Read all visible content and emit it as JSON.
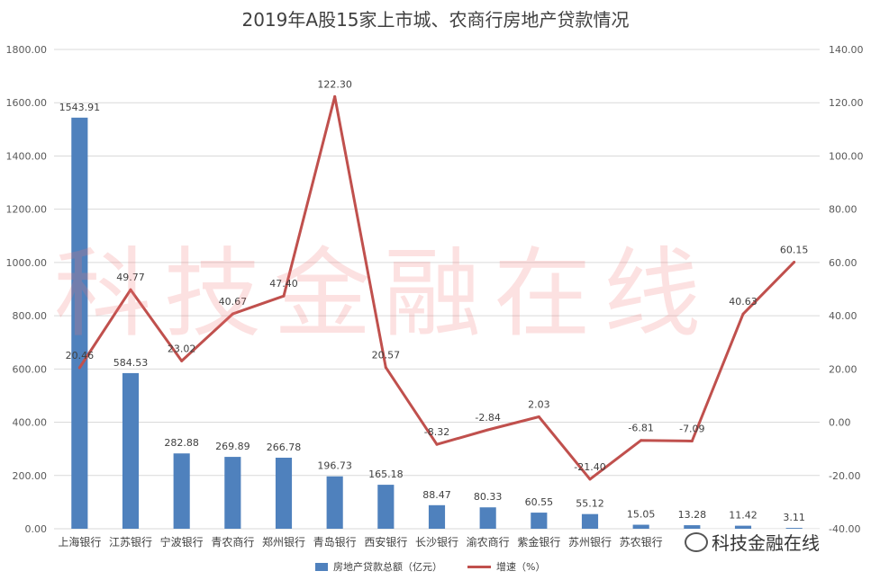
{
  "chart_data": {
    "type": "bar",
    "title": "2019年A股15家上市城、农商行房地产贷款情况",
    "categories": [
      "上海银行",
      "江苏银行",
      "宁波银行",
      "青农商行",
      "郑州银行",
      "青岛银行",
      "西安银行",
      "长沙银行",
      "渝农商行",
      "紫金银行",
      "苏州银行",
      "苏农银行",
      "",
      "",
      ""
    ],
    "series": [
      {
        "name": "房地产贷款总额（亿元）",
        "type": "bar",
        "axis": "left",
        "color": "#4f81bd",
        "values": [
          1543.91,
          584.53,
          282.88,
          269.89,
          266.78,
          196.73,
          165.18,
          88.47,
          80.33,
          60.55,
          55.12,
          15.05,
          13.28,
          11.42,
          3.11
        ]
      },
      {
        "name": "增速（%）",
        "type": "line",
        "axis": "right",
        "color": "#c0504d",
        "values": [
          20.46,
          49.77,
          23.02,
          40.67,
          47.4,
          122.3,
          20.57,
          -8.32,
          -2.84,
          2.03,
          -21.4,
          -6.81,
          -7.09,
          40.63,
          60.15
        ]
      }
    ],
    "bar_labels": [
      "1543.91",
      "584.53",
      "282.88",
      "269.89",
      "266.78",
      "196.73",
      "165.18",
      "88.47",
      "80.33",
      "60.55",
      "55.12",
      "15.05",
      "13.28",
      "11.42",
      "3.11"
    ],
    "line_labels": [
      "20.46",
      "49.77",
      "23.02",
      "40.67",
      "47.40",
      "122.30",
      "20.57",
      "-8.32",
      "-2.84",
      "2.03",
      "-21.40",
      "-6.81",
      "-7.09",
      "40.63",
      "60.15"
    ],
    "ylim_left": [
      0,
      1800
    ],
    "ylim_right": [
      -40,
      140
    ],
    "left_ticks": [
      "0.00",
      "200.00",
      "400.00",
      "600.00",
      "800.00",
      "1000.00",
      "1200.00",
      "1400.00",
      "1600.00",
      "1800.00"
    ],
    "right_ticks": [
      "-40.00",
      "-20.00",
      "0.00",
      "20.00",
      "40.00",
      "60.00",
      "80.00",
      "100.00",
      "120.00",
      "140.00"
    ],
    "grid": true,
    "legend": "bottom"
  },
  "watermark": "科技金融在线",
  "brand": "科技金融在线"
}
